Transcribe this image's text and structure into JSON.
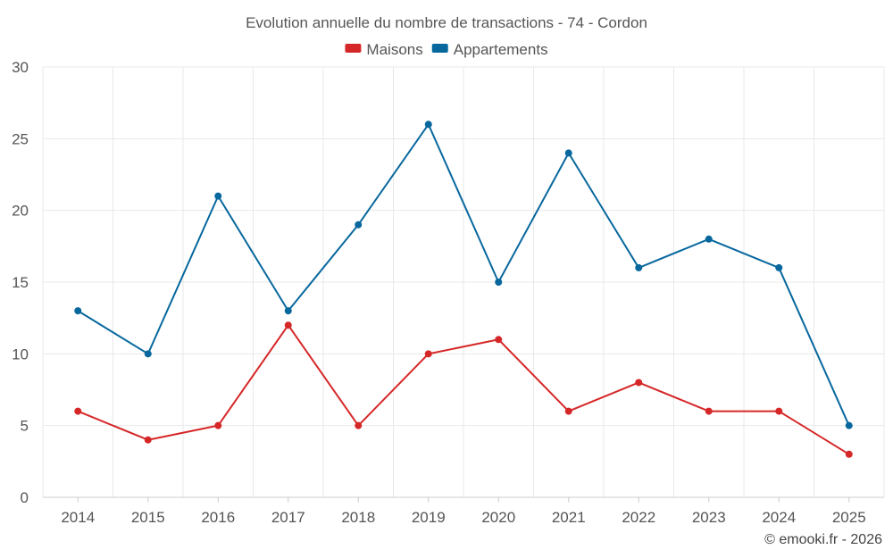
{
  "chart_data": {
    "type": "line",
    "title": "Evolution annuelle du nombre de transactions - 74 - Cordon",
    "categories": [
      "2014",
      "2015",
      "2016",
      "2017",
      "2018",
      "2019",
      "2020",
      "2021",
      "2022",
      "2023",
      "2024",
      "2025"
    ],
    "series": [
      {
        "name": "Maisons",
        "color": "#d62728",
        "values": [
          6,
          4,
          5,
          12,
          5,
          10,
          11,
          6,
          8,
          6,
          6,
          3
        ]
      },
      {
        "name": "Appartements",
        "color": "#08689e",
        "values": [
          13,
          10,
          21,
          13,
          19,
          26,
          15,
          24,
          16,
          18,
          16,
          5
        ]
      }
    ],
    "ylim": [
      0,
      30
    ],
    "yticks": [
      0,
      5,
      10,
      15,
      20,
      25,
      30
    ],
    "legend_position": "top-center",
    "grid": true,
    "xlabel": "",
    "ylabel": ""
  },
  "credit": "© emooki.fr - 2026"
}
